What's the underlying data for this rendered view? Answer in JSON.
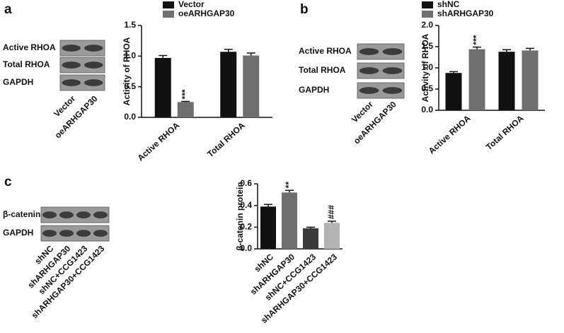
{
  "chart_data": [
    {
      "type": "grouped_bar",
      "panel_label": "a",
      "ylabel": "Activity of RHOA",
      "categories": [
        "Active RHOA",
        "Total RHOA"
      ],
      "series": [
        {
          "name": "Vector",
          "color": "#111111",
          "values": [
            0.97,
            1.07
          ],
          "errors": [
            0.04,
            0.04
          ],
          "annotations": [
            null,
            null
          ]
        },
        {
          "name": "oeARHGAP30",
          "color": "#6f6f6f",
          "values": [
            0.25,
            1.01
          ],
          "errors": [
            0.01,
            0.04
          ],
          "annotations": [
            "***",
            null
          ]
        }
      ],
      "ylim": [
        0,
        1.5
      ],
      "yticks": [
        {
          "value": 0,
          "label": "0.0"
        },
        {
          "value": 0.5,
          "label": "0.5"
        },
        {
          "value": 1,
          "label": "1.0"
        },
        {
          "value": 1.5,
          "label": "1.5"
        }
      ]
    },
    {
      "type": "grouped_bar",
      "panel_label": "b",
      "ylabel": "Activity of RHOA",
      "categories": [
        "Active RHOA",
        "Total RHOA"
      ],
      "series": [
        {
          "name": "shNC",
          "color": "#111111",
          "values": [
            0.88,
            1.38
          ],
          "errors": [
            0.03,
            0.05
          ],
          "annotations": [
            null,
            null
          ]
        },
        {
          "name": "shARHGAP30",
          "color": "#6f6f6f",
          "values": [
            1.44,
            1.41
          ],
          "errors": [
            0.05,
            0.05
          ],
          "annotations": [
            "***",
            null
          ]
        }
      ],
      "ylim": [
        0,
        2
      ],
      "yticks": [
        {
          "value": 0,
          "label": "0.0"
        },
        {
          "value": 0.5,
          "label": "0.5"
        },
        {
          "value": 1,
          "label": "1.0"
        },
        {
          "value": 1.5,
          "label": "1.5"
        },
        {
          "value": 2,
          "label": "2.0"
        }
      ]
    },
    {
      "type": "bar",
      "panel_label": "c",
      "ylabel": "β-catenin protein",
      "categories": [
        "shNC",
        "shARHGAP30",
        "shNC+CCG1423",
        "shARHGAP30+CCG1423"
      ],
      "values": [
        0.39,
        0.52,
        0.19,
        0.24
      ],
      "errors": [
        0.02,
        0.02,
        0.01,
        0.015
      ],
      "annotations": [
        null,
        "**",
        null,
        "###"
      ],
      "colors": [
        "#111111",
        "#6f6f6f",
        "#3a3a3a",
        "#b3b3b3"
      ],
      "ylim": [
        0,
        0.6
      ],
      "yticks": [
        {
          "value": 0,
          "label": "0.0"
        },
        {
          "value": 0.2,
          "label": "0.2"
        },
        {
          "value": 0.4,
          "label": "0.4"
        },
        {
          "value": 0.6,
          "label": "0.6"
        }
      ]
    }
  ],
  "blots": [
    {
      "rows": [
        "Active RHOA",
        "Total RHOA",
        "GAPDH"
      ],
      "lanes": [
        "Vector",
        "oeARHGAP30"
      ]
    },
    {
      "rows": [
        "Active RHOA",
        "Total RHOA",
        "GAPDH"
      ],
      "lanes": [
        "Vector",
        "oeARHGAP30"
      ]
    },
    {
      "rows": [
        "β-catenin",
        "GAPDH"
      ],
      "lanes": [
        "shNC",
        "shARHGAP30",
        "shNC+CCG1423",
        "shARHGAP30+CCG1423"
      ]
    }
  ]
}
